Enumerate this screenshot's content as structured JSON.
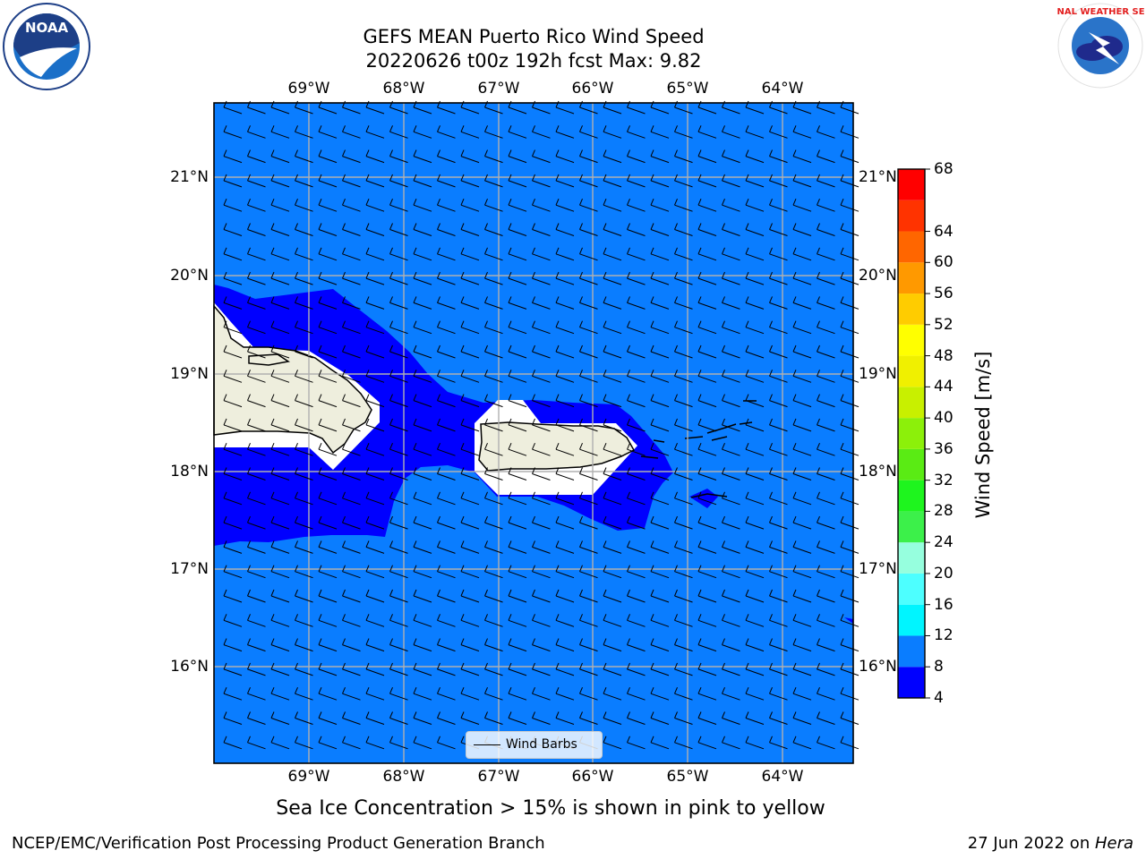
{
  "title": {
    "line1": "GEFS MEAN Puerto Rico Wind Speed",
    "line2": "20220626 t00z 192h fcst   Max: 9.82"
  },
  "map": {
    "lon_labels": [
      "69°W",
      "68°W",
      "67°W",
      "66°W",
      "65°W",
      "64°W"
    ],
    "lat_labels": [
      "21°N",
      "20°N",
      "19°N",
      "18°N",
      "17°N",
      "16°N"
    ],
    "lon_ticks": [
      -69,
      -68,
      -67,
      -66,
      -65,
      -64
    ],
    "lat_ticks": [
      21,
      20,
      19,
      18,
      17,
      16
    ],
    "extent": {
      "lon_min": -70.0,
      "lon_max": -63.25,
      "lat_min": 15.0,
      "lat_max": 21.75
    },
    "ocean_color": "#0a7dff",
    "low_wind_color": "#0000ff",
    "land_color": "#eeeedd",
    "gridline_color": "#b0b0b0",
    "wind_barb_direction": "easterly",
    "legend_label": "Wind Barbs"
  },
  "colorbar": {
    "title": "Wind Speed [m/s]",
    "ticks": [
      "68",
      "64",
      "60",
      "56",
      "52",
      "48",
      "44",
      "40",
      "36",
      "32",
      "28",
      "24",
      "20",
      "16",
      "12",
      "8",
      "4"
    ],
    "bins": [
      {
        "min": 4,
        "max": 8,
        "color": "#0000ff"
      },
      {
        "min": 8,
        "max": 12,
        "color": "#0a7dff"
      },
      {
        "min": 12,
        "max": 16,
        "color": "#00f5ff"
      },
      {
        "min": 16,
        "max": 20,
        "color": "#4dffff"
      },
      {
        "min": 20,
        "max": 24,
        "color": "#96ffde"
      },
      {
        "min": 24,
        "max": 28,
        "color": "#3cf04a"
      },
      {
        "min": 28,
        "max": 32,
        "color": "#1ef51e"
      },
      {
        "min": 32,
        "max": 36,
        "color": "#5aeb14"
      },
      {
        "min": 36,
        "max": 40,
        "color": "#8cf00a"
      },
      {
        "min": 40,
        "max": 44,
        "color": "#c8f000"
      },
      {
        "min": 44,
        "max": 48,
        "color": "#f0f000"
      },
      {
        "min": 48,
        "max": 52,
        "color": "#ffff00"
      },
      {
        "min": 52,
        "max": 56,
        "color": "#ffcc00"
      },
      {
        "min": 56,
        "max": 60,
        "color": "#ff9900"
      },
      {
        "min": 60,
        "max": 64,
        "color": "#ff6600"
      },
      {
        "min": 64,
        "max": 68,
        "color": "#ff3300"
      },
      {
        "min": 68,
        "max": 72,
        "color": "#ff0000"
      }
    ]
  },
  "logos": {
    "left_name": "NOAA",
    "right_name": "NATIONAL WEATHER SERVICE"
  },
  "notes": {
    "sea_ice": "Sea Ice Concentration > 15% is shown in pink to yellow",
    "branch": "NCEP/EMC/Verification Post Processing Product Generation Branch",
    "date": "27 Jun 2022 on ",
    "machine": "Hera"
  }
}
